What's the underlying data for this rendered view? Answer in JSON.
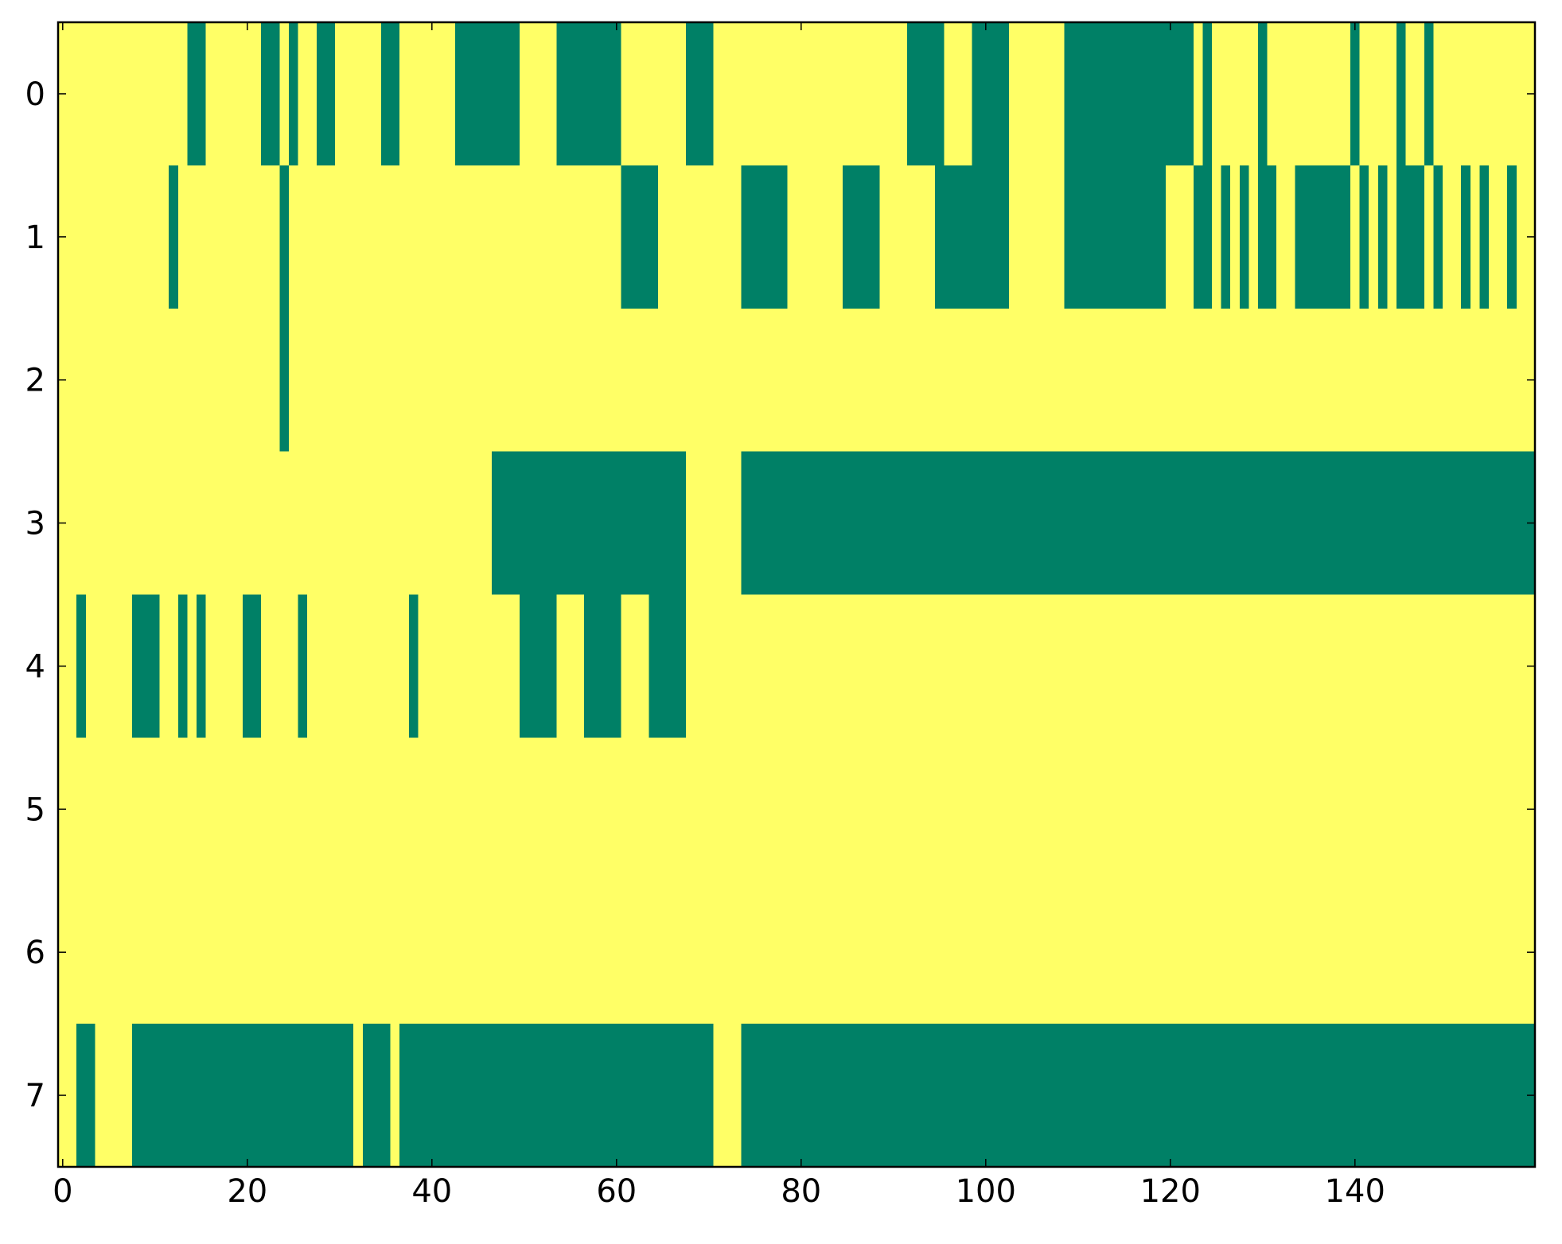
{
  "chart_data": {
    "type": "heatmap",
    "colors": [
      "#ffff66",
      "#008066"
    ],
    "xlim": [
      -0.5,
      159.5
    ],
    "ylim": [
      7.5,
      -0.5
    ],
    "xticks": [
      0,
      20,
      40,
      60,
      80,
      100,
      120,
      140
    ],
    "yticks": [
      0,
      1,
      2,
      3,
      4,
      5,
      6,
      7
    ],
    "z": [
      [
        0,
        0,
        0,
        0,
        0,
        0,
        0,
        0,
        0,
        0,
        0,
        0,
        0,
        0,
        1,
        1,
        0,
        0,
        0,
        0,
        0,
        0,
        1,
        1,
        0,
        1,
        0,
        0,
        1,
        1,
        0,
        0,
        0,
        0,
        0,
        1,
        1,
        0,
        0,
        0,
        0,
        0,
        0,
        1,
        1,
        1,
        1,
        1,
        1,
        1,
        0,
        0,
        0,
        0,
        1,
        1,
        1,
        1,
        1,
        1,
        1,
        0,
        0,
        0,
        0,
        0,
        0,
        0,
        1,
        1,
        1,
        0,
        0,
        0,
        0,
        0,
        0,
        0,
        0,
        0,
        0,
        0,
        0,
        0,
        0,
        0,
        0,
        0,
        0,
        0,
        0,
        0,
        1,
        1,
        1,
        1,
        0,
        0,
        0,
        1,
        1,
        1,
        1,
        0,
        0,
        0,
        0,
        0,
        0,
        1,
        1,
        1,
        1,
        1,
        1,
        1,
        1,
        1,
        1,
        1,
        1,
        1,
        1,
        0,
        1,
        0,
        0,
        0,
        0,
        0,
        1,
        0,
        0,
        0,
        0,
        0,
        0,
        0,
        0,
        0,
        1,
        0,
        0,
        0,
        0,
        1,
        0,
        0,
        1,
        0,
        0,
        0,
        0,
        0,
        0,
        0,
        0,
        0,
        0,
        0
      ],
      [
        0,
        0,
        0,
        0,
        0,
        0,
        0,
        0,
        0,
        0,
        0,
        0,
        1,
        0,
        0,
        0,
        0,
        0,
        0,
        0,
        0,
        0,
        0,
        0,
        1,
        0,
        0,
        0,
        0,
        0,
        0,
        0,
        0,
        0,
        0,
        0,
        0,
        0,
        0,
        0,
        0,
        0,
        0,
        0,
        0,
        0,
        0,
        0,
        0,
        0,
        0,
        0,
        0,
        0,
        0,
        0,
        0,
        0,
        0,
        0,
        0,
        1,
        1,
        1,
        1,
        0,
        0,
        0,
        0,
        0,
        0,
        0,
        0,
        0,
        1,
        1,
        1,
        1,
        1,
        0,
        0,
        0,
        0,
        0,
        0,
        1,
        1,
        1,
        1,
        0,
        0,
        0,
        0,
        0,
        0,
        1,
        1,
        1,
        1,
        1,
        1,
        1,
        1,
        0,
        0,
        0,
        0,
        0,
        0,
        1,
        1,
        1,
        1,
        1,
        1,
        1,
        1,
        1,
        1,
        1,
        0,
        0,
        0,
        1,
        1,
        0,
        1,
        0,
        1,
        0,
        1,
        1,
        0,
        0,
        1,
        1,
        1,
        1,
        1,
        1,
        0,
        1,
        0,
        1,
        0,
        1,
        1,
        1,
        0,
        1,
        0,
        0,
        1,
        0,
        1,
        0,
        0,
        1,
        0,
        0
      ],
      [
        0,
        0,
        0,
        0,
        0,
        0,
        0,
        0,
        0,
        0,
        0,
        0,
        0,
        0,
        0,
        0,
        0,
        0,
        0,
        0,
        0,
        0,
        0,
        0,
        1,
        0,
        0,
        0,
        0,
        0,
        0,
        0,
        0,
        0,
        0,
        0,
        0,
        0,
        0,
        0,
        0,
        0,
        0,
        0,
        0,
        0,
        0,
        0,
        0,
        0,
        0,
        0,
        0,
        0,
        0,
        0,
        0,
        0,
        0,
        0,
        0,
        0,
        0,
        0,
        0,
        0,
        0,
        0,
        0,
        0,
        0,
        0,
        0,
        0,
        0,
        0,
        0,
        0,
        0,
        0,
        0,
        0,
        0,
        0,
        0,
        0,
        0,
        0,
        0,
        0,
        0,
        0,
        0,
        0,
        0,
        0,
        0,
        0,
        0,
        0,
        0,
        0,
        0,
        0,
        0,
        0,
        0,
        0,
        0,
        0,
        0,
        0,
        0,
        0,
        0,
        0,
        0,
        0,
        0,
        0,
        0,
        0,
        0,
        0,
        0,
        0,
        0,
        0,
        0,
        0,
        0,
        0,
        0,
        0,
        0,
        0,
        0,
        0,
        0,
        0,
        0,
        0,
        0,
        0,
        0,
        0,
        0,
        0,
        0,
        0,
        0,
        0,
        0,
        0,
        0,
        0,
        0,
        0,
        0,
        0
      ],
      [
        0,
        0,
        0,
        0,
        0,
        0,
        0,
        0,
        0,
        0,
        0,
        0,
        0,
        0,
        0,
        0,
        0,
        0,
        0,
        0,
        0,
        0,
        0,
        0,
        0,
        0,
        0,
        0,
        0,
        0,
        0,
        0,
        0,
        0,
        0,
        0,
        0,
        0,
        0,
        0,
        0,
        0,
        0,
        0,
        0,
        0,
        0,
        1,
        1,
        1,
        1,
        1,
        1,
        1,
        1,
        1,
        1,
        1,
        1,
        1,
        1,
        1,
        1,
        1,
        1,
        1,
        1,
        1,
        0,
        0,
        0,
        0,
        0,
        0,
        1,
        1,
        1,
        1,
        1,
        1,
        1,
        1,
        1,
        1,
        1,
        1,
        1,
        1,
        1,
        1,
        1,
        1,
        1,
        1,
        1,
        1,
        1,
        1,
        1,
        1,
        1,
        1,
        1,
        1,
        1,
        1,
        1,
        1,
        1,
        1,
        1,
        1,
        1,
        1,
        1,
        1,
        1,
        1,
        1,
        1,
        1,
        1,
        1,
        1,
        1,
        1,
        1,
        1,
        1,
        1,
        1,
        1,
        1,
        1,
        1,
        1,
        1,
        1,
        1,
        1,
        1,
        1,
        1,
        1,
        1,
        1,
        1,
        1,
        1,
        1,
        1,
        1,
        1,
        1,
        1,
        1,
        1,
        1,
        1,
        1
      ],
      [
        0,
        0,
        1,
        0,
        0,
        0,
        0,
        0,
        1,
        1,
        1,
        0,
        0,
        1,
        0,
        1,
        0,
        0,
        0,
        0,
        1,
        1,
        0,
        0,
        0,
        0,
        1,
        0,
        0,
        0,
        0,
        0,
        0,
        0,
        0,
        0,
        0,
        0,
        1,
        0,
        0,
        0,
        0,
        0,
        0,
        0,
        0,
        0,
        0,
        0,
        1,
        1,
        1,
        1,
        0,
        0,
        0,
        1,
        1,
        1,
        1,
        0,
        0,
        0,
        1,
        1,
        1,
        1,
        0,
        0,
        0,
        0,
        0,
        0,
        0,
        0,
        0,
        0,
        0,
        0,
        0,
        0,
        0,
        0,
        0,
        0,
        0,
        0,
        0,
        0,
        0,
        0,
        0,
        0,
        0,
        0,
        0,
        0,
        0,
        0,
        0,
        0,
        0,
        0,
        0,
        0,
        0,
        0,
        0,
        0,
        0,
        0,
        0,
        0,
        0,
        0,
        0,
        0,
        0,
        0,
        0,
        0,
        0,
        0,
        0,
        0,
        0,
        0,
        0,
        0,
        0,
        0,
        0,
        0,
        0,
        0,
        0,
        0,
        0,
        0,
        0,
        0,
        0,
        0,
        0,
        0,
        0,
        0,
        0,
        0,
        0,
        0,
        0,
        0,
        0,
        0,
        0,
        0,
        0,
        0
      ],
      [
        0,
        0,
        0,
        0,
        0,
        0,
        0,
        0,
        0,
        0,
        0,
        0,
        0,
        0,
        0,
        0,
        0,
        0,
        0,
        0,
        0,
        0,
        0,
        0,
        0,
        0,
        0,
        0,
        0,
        0,
        0,
        0,
        0,
        0,
        0,
        0,
        0,
        0,
        0,
        0,
        0,
        0,
        0,
        0,
        0,
        0,
        0,
        0,
        0,
        0,
        0,
        0,
        0,
        0,
        0,
        0,
        0,
        0,
        0,
        0,
        0,
        0,
        0,
        0,
        0,
        0,
        0,
        0,
        0,
        0,
        0,
        0,
        0,
        0,
        0,
        0,
        0,
        0,
        0,
        0,
        0,
        0,
        0,
        0,
        0,
        0,
        0,
        0,
        0,
        0,
        0,
        0,
        0,
        0,
        0,
        0,
        0,
        0,
        0,
        0,
        0,
        0,
        0,
        0,
        0,
        0,
        0,
        0,
        0,
        0,
        0,
        0,
        0,
        0,
        0,
        0,
        0,
        0,
        0,
        0,
        0,
        0,
        0,
        0,
        0,
        0,
        0,
        0,
        0,
        0,
        0,
        0,
        0,
        0,
        0,
        0,
        0,
        0,
        0,
        0,
        0,
        0,
        0,
        0,
        0,
        0,
        0,
        0,
        0,
        0,
        0,
        0,
        0,
        0,
        0,
        0,
        0,
        0,
        0,
        0
      ],
      [
        0,
        0,
        0,
        0,
        0,
        0,
        0,
        0,
        0,
        0,
        0,
        0,
        0,
        0,
        0,
        0,
        0,
        0,
        0,
        0,
        0,
        0,
        0,
        0,
        0,
        0,
        0,
        0,
        0,
        0,
        0,
        0,
        0,
        0,
        0,
        0,
        0,
        0,
        0,
        0,
        0,
        0,
        0,
        0,
        0,
        0,
        0,
        0,
        0,
        0,
        0,
        0,
        0,
        0,
        0,
        0,
        0,
        0,
        0,
        0,
        0,
        0,
        0,
        0,
        0,
        0,
        0,
        0,
        0,
        0,
        0,
        0,
        0,
        0,
        0,
        0,
        0,
        0,
        0,
        0,
        0,
        0,
        0,
        0,
        0,
        0,
        0,
        0,
        0,
        0,
        0,
        0,
        0,
        0,
        0,
        0,
        0,
        0,
        0,
        0,
        0,
        0,
        0,
        0,
        0,
        0,
        0,
        0,
        0,
        0,
        0,
        0,
        0,
        0,
        0,
        0,
        0,
        0,
        0,
        0,
        0,
        0,
        0,
        0,
        0,
        0,
        0,
        0,
        0,
        0,
        0,
        0,
        0,
        0,
        0,
        0,
        0,
        0,
        0,
        0,
        0,
        0,
        0,
        0,
        0,
        0,
        0,
        0,
        0,
        0,
        0,
        0,
        0,
        0,
        0,
        0,
        0,
        0,
        0,
        0
      ],
      [
        0,
        0,
        1,
        1,
        0,
        0,
        0,
        0,
        1,
        1,
        1,
        1,
        1,
        1,
        1,
        1,
        1,
        1,
        1,
        1,
        1,
        1,
        1,
        1,
        1,
        1,
        1,
        1,
        1,
        1,
        1,
        1,
        0,
        1,
        1,
        1,
        0,
        1,
        1,
        1,
        1,
        1,
        1,
        1,
        1,
        1,
        1,
        1,
        1,
        1,
        1,
        1,
        1,
        1,
        1,
        1,
        1,
        1,
        1,
        1,
        1,
        1,
        1,
        1,
        1,
        1,
        1,
        1,
        1,
        1,
        1,
        0,
        0,
        0,
        1,
        1,
        1,
        1,
        1,
        1,
        1,
        1,
        1,
        1,
        1,
        1,
        1,
        1,
        1,
        1,
        1,
        1,
        1,
        1,
        1,
        1,
        1,
        1,
        1,
        1,
        1,
        1,
        1,
        1,
        1,
        1,
        1,
        1,
        1,
        1,
        1,
        1,
        1,
        1,
        1,
        1,
        1,
        1,
        1,
        1,
        1,
        1,
        1,
        1,
        1,
        1,
        1,
        1,
        1,
        1,
        1,
        1,
        1,
        1,
        1,
        1,
        1,
        1,
        1,
        1,
        1,
        1,
        1,
        1,
        1,
        1,
        1,
        1,
        1,
        1,
        1,
        1,
        1,
        1,
        1,
        1,
        1,
        1,
        1,
        1
      ]
    ]
  }
}
